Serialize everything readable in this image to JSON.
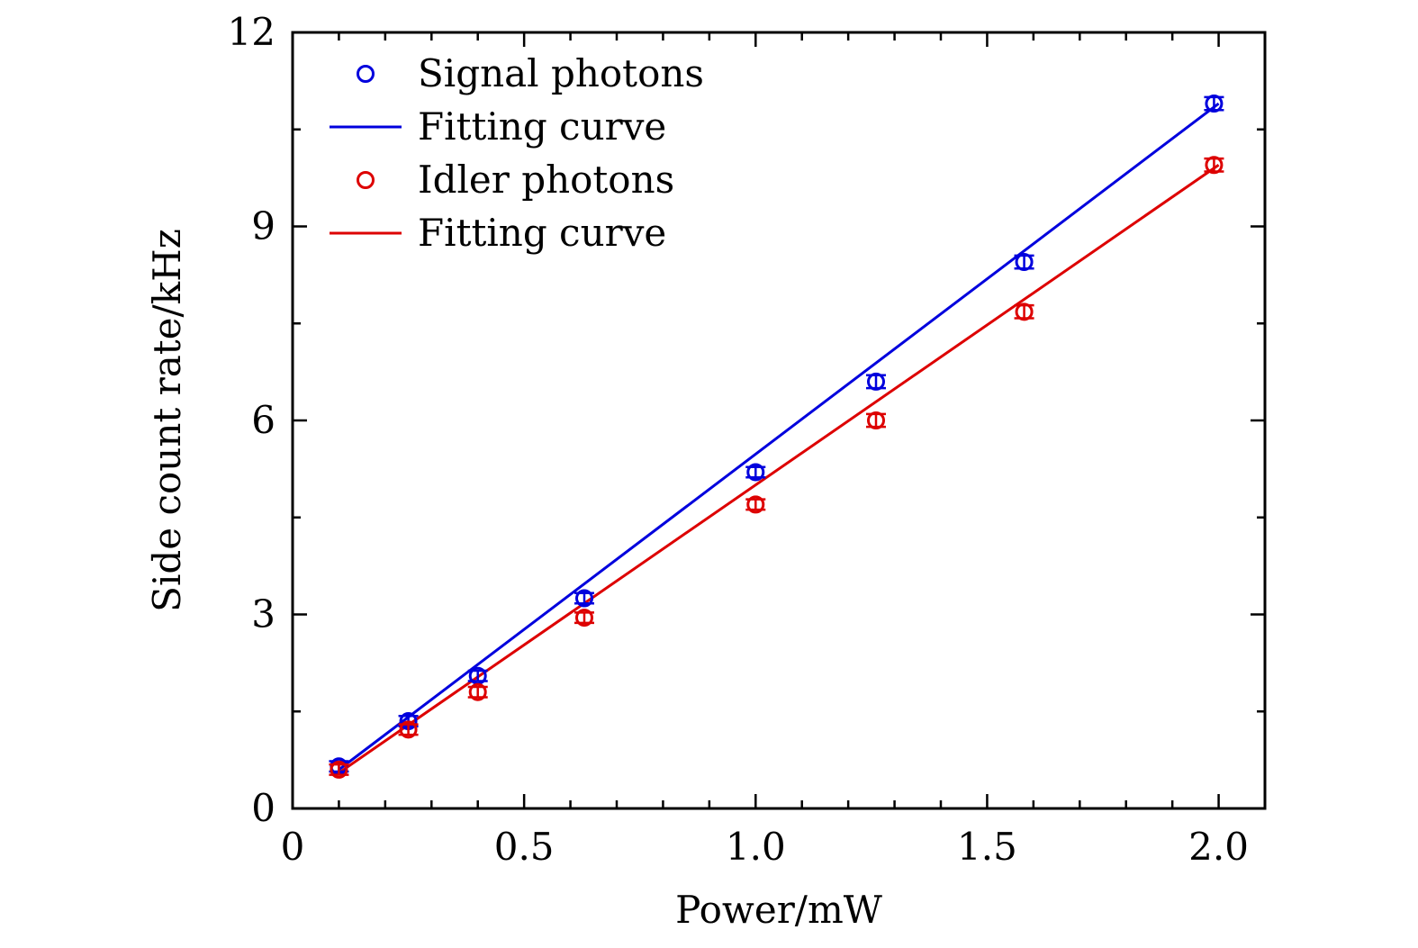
{
  "chart_data": {
    "type": "scatter",
    "title": "",
    "xlabel": "Power/mW",
    "ylabel": "Side count rate/kHz",
    "xlim": [
      0,
      2.1
    ],
    "ylim": [
      0,
      12
    ],
    "xticks": [
      0,
      0.5,
      1.0,
      1.5,
      2.0
    ],
    "xtick_labels": [
      "0",
      "0.5",
      "1.0",
      "1.5",
      "2.0"
    ],
    "yticks": [
      0,
      3,
      6,
      9,
      12
    ],
    "ytick_labels": [
      "0",
      "3",
      "6",
      "9",
      "12"
    ],
    "grid": false,
    "legend_position": "top-left",
    "series": [
      {
        "name": "Signal photons",
        "kind": "points",
        "color": "#0000dd",
        "x": [
          0.1,
          0.25,
          0.4,
          0.63,
          1.0,
          1.26,
          1.58,
          1.99
        ],
        "y": [
          0.65,
          1.35,
          2.05,
          3.25,
          5.2,
          6.6,
          8.45,
          10.9
        ],
        "error": [
          0.08,
          0.08,
          0.08,
          0.08,
          0.08,
          0.1,
          0.1,
          0.1
        ]
      },
      {
        "name": "Fitting curve",
        "kind": "line",
        "color": "#0000dd",
        "x": [
          0.1,
          2.0
        ],
        "y": [
          0.6,
          10.9
        ]
      },
      {
        "name": "Idler photons",
        "kind": "points",
        "color": "#dd0000",
        "x": [
          0.1,
          0.25,
          0.4,
          0.63,
          1.0,
          1.26,
          1.58,
          1.99
        ],
        "y": [
          0.6,
          1.22,
          1.8,
          2.95,
          4.7,
          6.0,
          7.68,
          9.95
        ],
        "error": [
          0.08,
          0.08,
          0.08,
          0.08,
          0.08,
          0.1,
          0.1,
          0.1
        ]
      },
      {
        "name": "Fitting curve",
        "kind": "line",
        "color": "#dd0000",
        "x": [
          0.1,
          2.0
        ],
        "y": [
          0.55,
          9.95
        ]
      }
    ]
  }
}
